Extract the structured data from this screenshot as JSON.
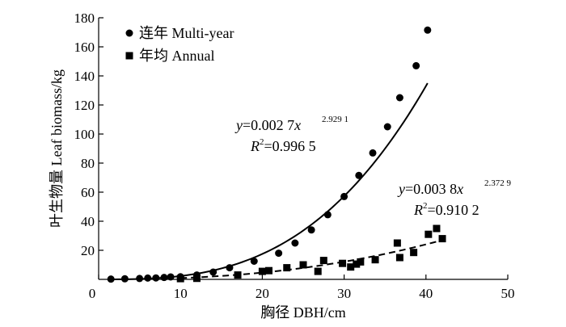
{
  "chart_data": {
    "type": "scatter",
    "xlabel": "胸径 DBH/cm",
    "ylabel": "叶生物量 Leaf biomass/kg",
    "xlim": [
      0,
      50
    ],
    "ylim": [
      0,
      180
    ],
    "xticks": [
      "0",
      "10",
      "20",
      "30",
      "40",
      "50"
    ],
    "yticks": [
      "20",
      "40",
      "60",
      "80",
      "100",
      "120",
      "140",
      "160",
      "180"
    ],
    "grid": false,
    "legend_position": "top-left",
    "series": [
      {
        "name": "连年 Multi-year",
        "marker": "circle",
        "points": [
          [
            1.5,
            0.2
          ],
          [
            3.2,
            0.4
          ],
          [
            5.0,
            0.6
          ],
          [
            6.0,
            0.9
          ],
          [
            7.0,
            1.0
          ],
          [
            8.0,
            1.3
          ],
          [
            8.8,
            1.7
          ],
          [
            10.0,
            1.8
          ],
          [
            12.0,
            3.0
          ],
          [
            14.0,
            5.0
          ],
          [
            16.0,
            8.0
          ],
          [
            19.0,
            12.5
          ],
          [
            22.0,
            18.0
          ],
          [
            24.0,
            25.0
          ],
          [
            26.0,
            34.0
          ],
          [
            28.0,
            44.5
          ],
          [
            30.0,
            57.0
          ],
          [
            31.8,
            71.5
          ],
          [
            33.5,
            87.0
          ],
          [
            35.3,
            105.0
          ],
          [
            36.8,
            125.0
          ],
          [
            38.8,
            147.0
          ],
          [
            40.2,
            171.5
          ]
        ],
        "fit": {
          "type": "power",
          "a": 0.0027,
          "b": 2.9291,
          "x_range": [
            1.5,
            40.2
          ],
          "line": "solid"
        },
        "equation_text": "y=0.002 7x",
        "exponent_text": "2.929 1",
        "r2_value": "=0.996 5"
      },
      {
        "name": "年均 Annual",
        "marker": "square",
        "points": [
          [
            10.0,
            0.5
          ],
          [
            12.0,
            0.7
          ],
          [
            17.0,
            3.0
          ],
          [
            20.0,
            5.5
          ],
          [
            20.8,
            6.0
          ],
          [
            23.0,
            8.0
          ],
          [
            25.0,
            10.0
          ],
          [
            26.8,
            5.5
          ],
          [
            27.5,
            13.0
          ],
          [
            29.8,
            11.0
          ],
          [
            30.8,
            8.5
          ],
          [
            31.5,
            10.5
          ],
          [
            32.0,
            12.0
          ],
          [
            33.8,
            13.5
          ],
          [
            36.5,
            25.0
          ],
          [
            36.8,
            15.0
          ],
          [
            38.5,
            18.5
          ],
          [
            40.3,
            31.0
          ],
          [
            41.3,
            35.0
          ],
          [
            42.0,
            28.0
          ]
        ],
        "fit": {
          "type": "power",
          "a": 0.0038,
          "b": 2.3729,
          "x_range": [
            10.0,
            42.0
          ],
          "line": "dashed"
        },
        "equation_text": "y=0.003 8x",
        "exponent_text": "2.372 9",
        "r2_value": "=0.910 2"
      }
    ]
  }
}
